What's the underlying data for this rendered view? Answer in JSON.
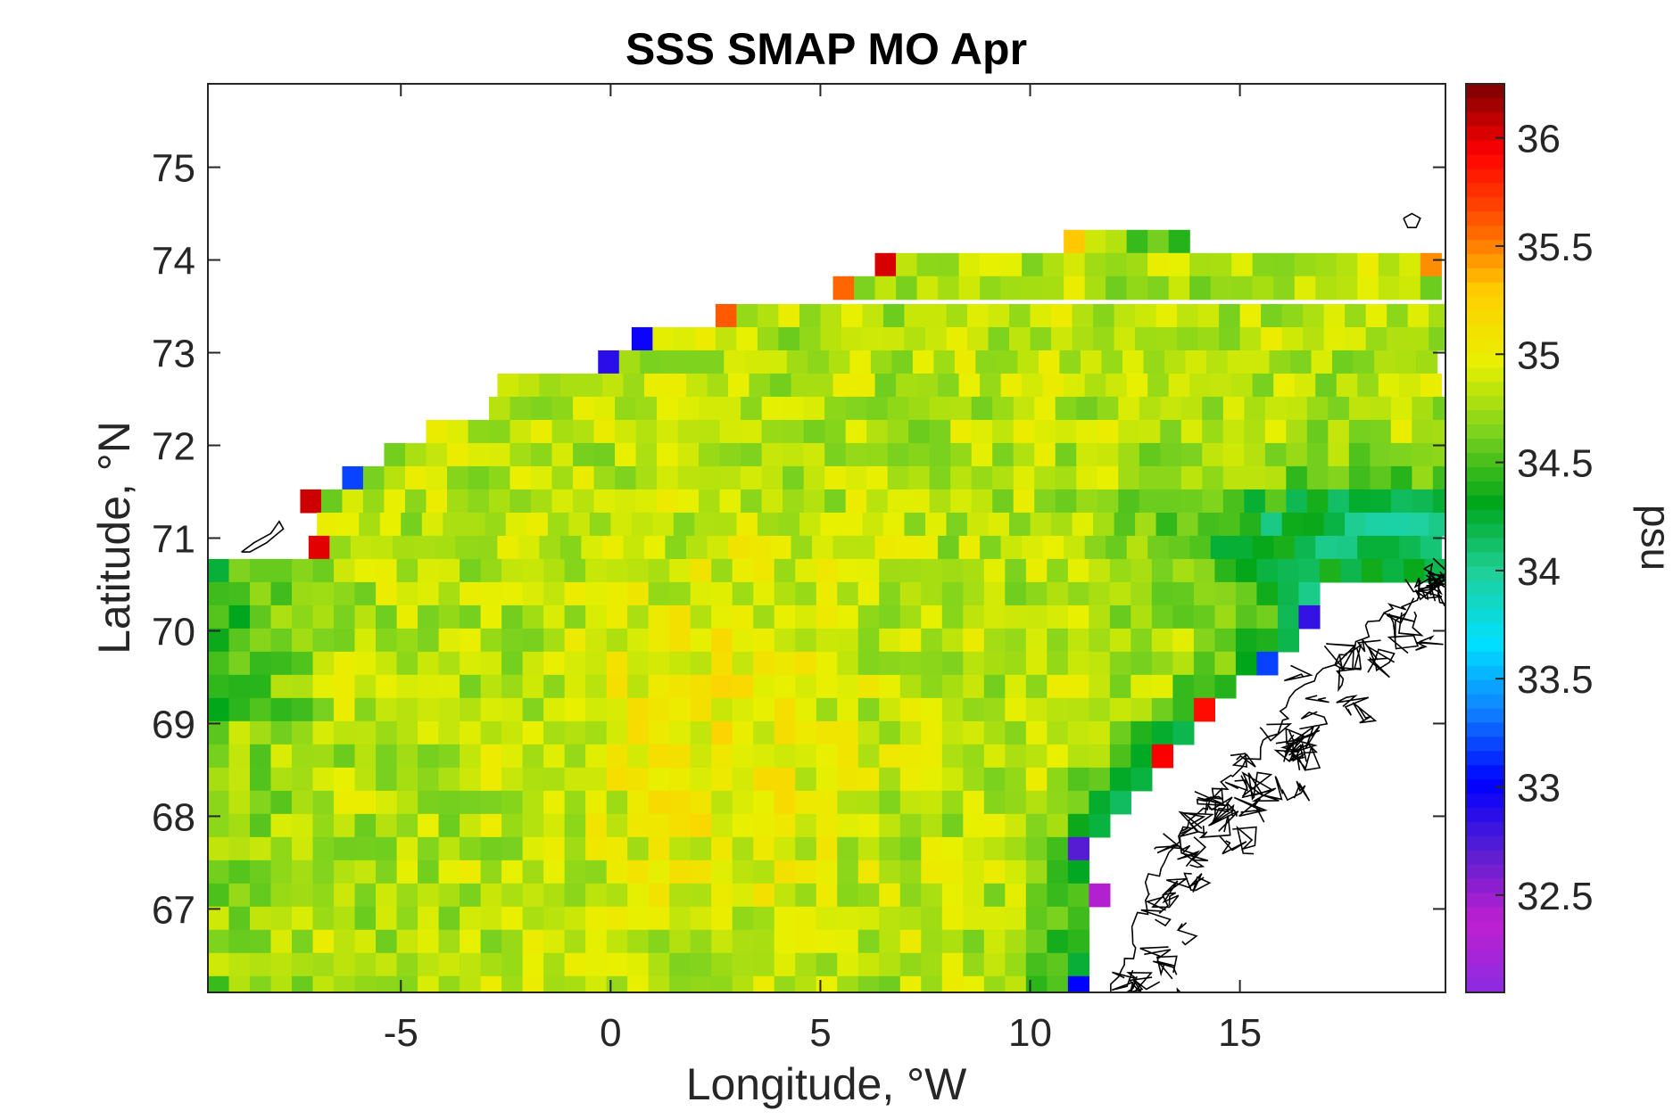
{
  "chart_data": {
    "type": "heatmap",
    "title": "SSS SMAP MO Apr",
    "xlabel": "Longitude, °W",
    "ylabel": "Latitude, °N",
    "colorbar_label": "psu",
    "xlim": [
      -9.6,
      19.9
    ],
    "ylim": [
      66.1,
      75.9
    ],
    "clim": [
      32.05,
      36.25
    ],
    "xticks": [
      -5,
      0,
      5,
      10,
      15
    ],
    "xtick_labels": [
      "-5",
      "0",
      "5",
      "10",
      "15"
    ],
    "yticks": [
      67,
      68,
      69,
      70,
      71,
      72,
      73,
      74,
      75
    ],
    "ytick_labels": [
      "67",
      "68",
      "69",
      "70",
      "71",
      "72",
      "73",
      "74",
      "75"
    ],
    "colorbar_ticks": [
      32.5,
      33,
      33.5,
      34,
      34.5,
      35,
      35.5,
      36
    ],
    "colorbar_tick_labels": [
      "32.5",
      "33",
      "33.5",
      "34",
      "34.5",
      "35",
      "35.5",
      "36"
    ],
    "colormap": [
      "#8a2be2",
      "#c020d0",
      "#5a1fd0",
      "#0000ff",
      "#0f7fff",
      "#00e0ff",
      "#1fd09a",
      "#00a61a",
      "#7bd21e",
      "#e8f000",
      "#ffd000",
      "#ff5a00",
      "#ff0000",
      "#7a0000"
    ],
    "grid": false,
    "legend": "colorbar-right",
    "cell_size_deg": {
      "lon": 0.5,
      "lat": 0.25
    },
    "field_summary": {
      "open_ocean_typical_psu": 34.8,
      "central_band_lon": [
        0,
        5
      ],
      "central_band_psu": 35.0,
      "norwegian_coastal_current_psu": 34.0,
      "coastal_edge_min_psu": 32.2,
      "coastal_edge_max_psu": 36.2
    },
    "data_extent": [
      {
        "lat": 74.2,
        "lon_min": 10.8,
        "lon_max": 13.8
      },
      {
        "lat": 73.95,
        "lon_min": 6.3,
        "lon_max": 19.9
      },
      {
        "lat": 73.7,
        "lon_min": 5.3,
        "lon_max": 19.9
      },
      {
        "lat": 73.4,
        "lon_min": 2.5,
        "lon_max": 19.9
      },
      {
        "lat": 73.15,
        "lon_min": 0.5,
        "lon_max": 19.9
      },
      {
        "lat": 72.9,
        "lon_min": -0.3,
        "lon_max": 19.9
      },
      {
        "lat": 72.65,
        "lon_min": -2.7,
        "lon_max": 19.9
      },
      {
        "lat": 72.4,
        "lon_min": -2.9,
        "lon_max": 19.9
      },
      {
        "lat": 72.15,
        "lon_min": -4.4,
        "lon_max": 19.9
      },
      {
        "lat": 71.9,
        "lon_min": -5.4,
        "lon_max": 19.9
      },
      {
        "lat": 71.65,
        "lon_min": -6.4,
        "lon_max": 19.9
      },
      {
        "lat": 71.4,
        "lon_min": -7.4,
        "lon_max": 19.9
      },
      {
        "lat": 71.15,
        "lon_min": -7.0,
        "lon_max": 19.9
      },
      {
        "lat": 70.9,
        "lon_min": -7.2,
        "lon_max": 19.9
      },
      {
        "lat": 70.65,
        "lon_min": -9.6,
        "lon_max": 19.9
      },
      {
        "lat": 70.4,
        "lon_min": -9.6,
        "lon_max": 17.1
      },
      {
        "lat": 70.15,
        "lon_min": -9.6,
        "lon_max": 16.9
      },
      {
        "lat": 69.9,
        "lon_min": -9.6,
        "lon_max": 16.3
      },
      {
        "lat": 69.65,
        "lon_min": -9.6,
        "lon_max": 15.8
      },
      {
        "lat": 69.4,
        "lon_min": -9.6,
        "lon_max": 15.0
      },
      {
        "lat": 69.15,
        "lon_min": -9.6,
        "lon_max": 14.3
      },
      {
        "lat": 68.9,
        "lon_min": -9.6,
        "lon_max": 13.8
      },
      {
        "lat": 68.65,
        "lon_min": -9.6,
        "lon_max": 13.3
      },
      {
        "lat": 68.4,
        "lon_min": -9.6,
        "lon_max": 12.8
      },
      {
        "lat": 68.15,
        "lon_min": -9.6,
        "lon_max": 12.3
      },
      {
        "lat": 67.9,
        "lon_min": -9.6,
        "lon_max": 12.0
      },
      {
        "lat": 67.65,
        "lon_min": -9.6,
        "lon_max": 11.6
      },
      {
        "lat": 67.4,
        "lon_min": -9.6,
        "lon_max": 11.6
      },
      {
        "lat": 67.15,
        "lon_min": -9.6,
        "lon_max": 12.0
      },
      {
        "lat": 66.9,
        "lon_min": -9.6,
        "lon_max": 11.6
      },
      {
        "lat": 66.65,
        "lon_min": -9.6,
        "lon_max": 11.3
      },
      {
        "lat": 66.4,
        "lon_min": -9.6,
        "lon_max": 11.3
      },
      {
        "lat": 66.15,
        "lon_min": -9.6,
        "lon_max": 11.3
      }
    ],
    "coastline_color": "#000000"
  }
}
